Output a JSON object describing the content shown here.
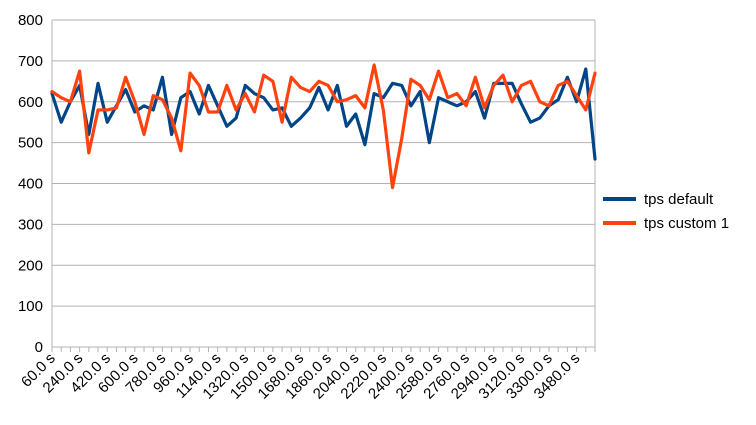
{
  "chart_data": {
    "type": "line",
    "title": "",
    "xlabel": "",
    "ylabel": "",
    "ylim": [
      0,
      800
    ],
    "yticks": [
      0,
      100,
      200,
      300,
      400,
      500,
      600,
      700,
      800
    ],
    "grid": true,
    "legend_position": "right",
    "x_tick_labels": [
      "60.0 s",
      "240.0 s",
      "420.0 s",
      "600.0 s",
      "780.0 s",
      "960.0 s",
      "1140.0 s",
      "1320.0 s",
      "1500.0 s",
      "1680.0 s",
      "1860.0 s",
      "2040.0 s",
      "2220.0 s",
      "2400.0 s",
      "2580.0 s",
      "2760.0 s",
      "2940.0 s",
      "3120.0 s",
      "3300.0 s",
      "3480.0 s"
    ],
    "x": [
      60,
      120,
      180,
      240,
      300,
      360,
      420,
      480,
      540,
      600,
      660,
      720,
      780,
      840,
      900,
      960,
      1020,
      1080,
      1140,
      1200,
      1260,
      1320,
      1380,
      1440,
      1500,
      1560,
      1620,
      1680,
      1740,
      1800,
      1860,
      1920,
      1980,
      2040,
      2100,
      2160,
      2220,
      2280,
      2340,
      2400,
      2460,
      2520,
      2580,
      2640,
      2700,
      2760,
      2820,
      2880,
      2940,
      3000,
      3060,
      3120,
      3180,
      3240,
      3300,
      3360,
      3420,
      3480,
      3540,
      3600
    ],
    "series": [
      {
        "name": "tps default",
        "color": "#004586",
        "values": [
          620,
          550,
          600,
          640,
          520,
          645,
          550,
          590,
          630,
          575,
          590,
          580,
          660,
          520,
          610,
          625,
          570,
          640,
          590,
          540,
          560,
          640,
          620,
          610,
          580,
          585,
          540,
          560,
          585,
          635,
          580,
          640,
          540,
          570,
          495,
          620,
          610,
          645,
          640,
          590,
          625,
          500,
          610,
          600,
          590,
          600,
          625,
          560,
          645,
          645,
          645,
          595,
          550,
          560,
          590,
          605,
          660,
          600,
          680,
          460
        ]
      },
      {
        "name": "tps custom 1",
        "color": "#ff420e",
        "values": [
          625,
          610,
          600,
          675,
          475,
          580,
          580,
          585,
          660,
          600,
          520,
          615,
          605,
          560,
          480,
          670,
          640,
          575,
          575,
          640,
          580,
          620,
          575,
          665,
          650,
          550,
          660,
          635,
          625,
          650,
          640,
          600,
          605,
          615,
          585,
          690,
          580,
          390,
          510,
          655,
          640,
          605,
          675,
          610,
          620,
          590,
          660,
          585,
          640,
          665,
          600,
          640,
          650,
          600,
          590,
          640,
          650,
          615,
          580,
          670
        ]
      }
    ]
  }
}
